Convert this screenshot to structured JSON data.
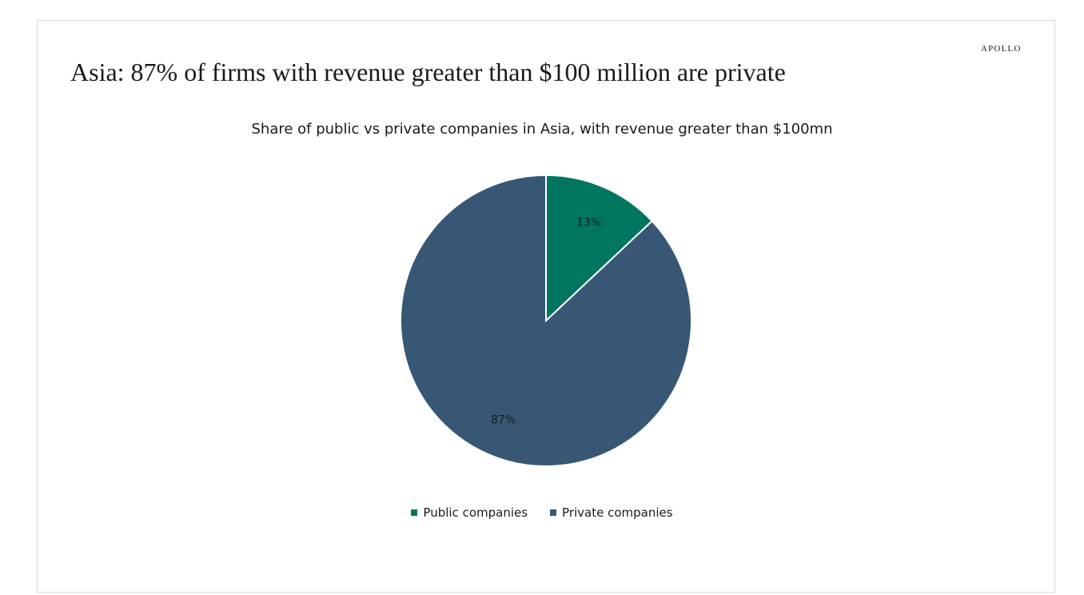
{
  "brand": "APOLLO",
  "headline": "Asia: 87% of firms with revenue greater than $100 million are private",
  "chart_data": {
    "type": "pie",
    "title": "Share of public vs private companies in Asia, with revenue greater than $100mn",
    "series": [
      {
        "name": "Public companies",
        "value": 13,
        "label": "13%",
        "color": "#00765f"
      },
      {
        "name": "Private companies",
        "value": 87,
        "label": "87%",
        "color": "#375775"
      }
    ],
    "start_angle_deg": 0,
    "direction": "clockwise",
    "legend_position": "bottom",
    "slice_border_color": "#ffffff"
  }
}
